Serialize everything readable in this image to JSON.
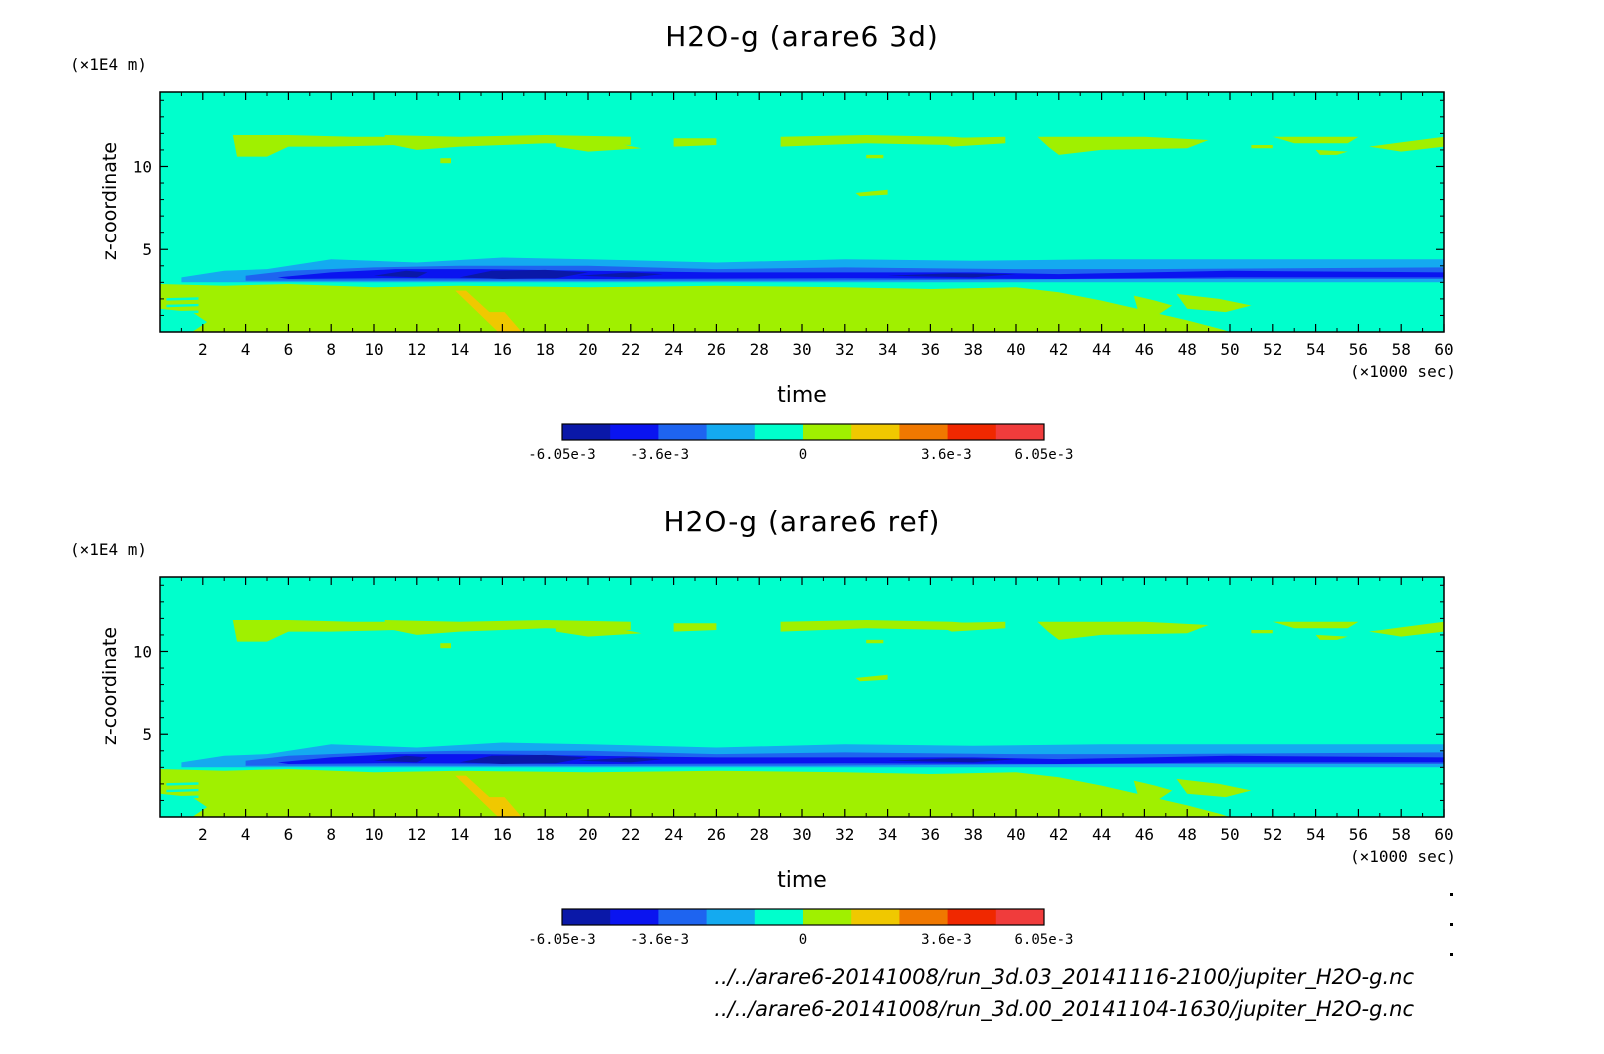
{
  "chart_data": [
    {
      "type": "heatmap",
      "title": "H2O-g (arare6 3d)",
      "xlabel": "time",
      "x_unit": "(×1000 sec)",
      "ylabel": "z-coordinate",
      "y_unit": "(×1E4 m)",
      "xlim": [
        0,
        60
      ],
      "ylim": [
        0,
        14.5
      ],
      "x_ticks": [
        2,
        4,
        6,
        8,
        10,
        12,
        14,
        16,
        18,
        20,
        22,
        24,
        26,
        28,
        30,
        32,
        34,
        36,
        38,
        40,
        42,
        44,
        46,
        48,
        50,
        52,
        54,
        56,
        58,
        60
      ],
      "y_ticks": [
        5,
        10
      ],
      "colorbar": {
        "levels": [
          -0.00605,
          -0.00484,
          -0.00363,
          -0.00242,
          -0.00121,
          0,
          0.00121,
          0.00242,
          0.00363,
          0.00484,
          0.00605
        ],
        "colors": [
          "#0a18a8",
          "#0a14f0",
          "#1e64f0",
          "#14aaf0",
          "#00ffcc",
          "#a0f000",
          "#f0c800",
          "#f07800",
          "#f02800",
          "#f03c3c"
        ],
        "tick_labels": [
          "-6.05e-3",
          "-3.6e-3",
          "0",
          "3.6e-3",
          "6.05e-3"
        ],
        "tick_values": [
          -0.00605,
          -0.0036,
          0,
          0.0036,
          0.00605
        ]
      },
      "regions": [
        {
          "level": "positive-low",
          "color": "#a0f000",
          "description": "upper band",
          "x": [
            3.4,
            60
          ],
          "y": [
            10.5,
            12
          ]
        },
        {
          "level": "positive-low",
          "color": "#a0f000",
          "description": "lower layer",
          "x": [
            0,
            49
          ],
          "y": [
            0,
            3
          ]
        },
        {
          "level": "negative-mid",
          "color": "#1e64f0",
          "description": "mid band",
          "x": [
            5,
            60
          ],
          "y": [
            3,
            4.5
          ]
        },
        {
          "level": "negative-strong",
          "color": "#0a18a8",
          "description": "core",
          "x": [
            10,
            22
          ],
          "y": [
            3.2,
            3.8
          ]
        }
      ]
    },
    {
      "type": "heatmap",
      "title": "H2O-g (arare6 ref)",
      "xlabel": "time",
      "x_unit": "(×1000 sec)",
      "ylabel": "z-coordinate",
      "y_unit": "(×1E4 m)",
      "xlim": [
        0,
        60
      ],
      "ylim": [
        0,
        14.5
      ],
      "x_ticks": [
        2,
        4,
        6,
        8,
        10,
        12,
        14,
        16,
        18,
        20,
        22,
        24,
        26,
        28,
        30,
        32,
        34,
        36,
        38,
        40,
        42,
        44,
        46,
        48,
        50,
        52,
        54,
        56,
        58,
        60
      ],
      "y_ticks": [
        5,
        10
      ],
      "colorbar": {
        "levels": [
          -0.00605,
          -0.00484,
          -0.00363,
          -0.00242,
          -0.00121,
          0,
          0.00121,
          0.00242,
          0.00363,
          0.00484,
          0.00605
        ],
        "colors": [
          "#0a18a8",
          "#0a14f0",
          "#1e64f0",
          "#14aaf0",
          "#00ffcc",
          "#a0f000",
          "#f0c800",
          "#f07800",
          "#f02800",
          "#f03c3c"
        ],
        "tick_labels": [
          "-6.05e-3",
          "-3.6e-3",
          "0",
          "3.6e-3",
          "6.05e-3"
        ],
        "tick_values": [
          -0.00605,
          -0.0036,
          0,
          0.0036,
          0.00605
        ]
      }
    }
  ],
  "file_paths": [
    "../../arare6-20141008/run_3d.03_20141116-2100/jupiter_H2O-g.nc",
    "../../arare6-20141008/run_3d.00_20141104-1630/jupiter_H2O-g.nc"
  ]
}
